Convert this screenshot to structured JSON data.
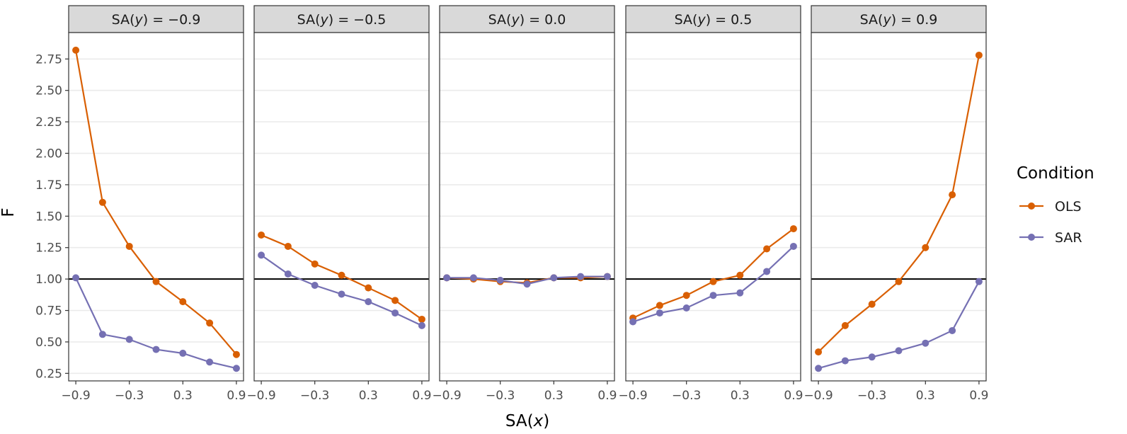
{
  "chart_data": {
    "type": "line",
    "facet_label_prefix": "SA(y) = ",
    "facets": [
      {
        "label": "SA(y) = −0.9",
        "value": "−0.9",
        "series": [
          {
            "name": "OLS",
            "values": [
              2.82,
              1.61,
              1.26,
              0.98,
              0.82,
              0.65,
              0.4
            ]
          },
          {
            "name": "SAR",
            "values": [
              1.01,
              0.56,
              0.52,
              0.44,
              0.41,
              0.34,
              0.29
            ]
          }
        ]
      },
      {
        "label": "SA(y) = −0.5",
        "value": "−0.5",
        "series": [
          {
            "name": "OLS",
            "values": [
              1.35,
              1.26,
              1.12,
              1.03,
              0.93,
              0.83,
              0.68
            ]
          },
          {
            "name": "SAR",
            "values": [
              1.19,
              1.04,
              0.95,
              0.88,
              0.82,
              0.73,
              0.63
            ]
          }
        ]
      },
      {
        "label": "SA(y) = 0.0",
        "value": "0.0",
        "series": [
          {
            "name": "OLS",
            "values": [
              1.01,
              1.0,
              0.98,
              0.97,
              1.01,
              1.01,
              1.02
            ]
          },
          {
            "name": "SAR",
            "values": [
              1.01,
              1.01,
              0.99,
              0.96,
              1.01,
              1.02,
              1.02
            ]
          }
        ]
      },
      {
        "label": "SA(y) = 0.5",
        "value": "0.5",
        "series": [
          {
            "name": "OLS",
            "values": [
              0.69,
              0.79,
              0.87,
              0.98,
              1.03,
              1.24,
              1.4
            ]
          },
          {
            "name": "SAR",
            "values": [
              0.66,
              0.73,
              0.77,
              0.87,
              0.89,
              1.06,
              1.26
            ]
          }
        ]
      },
      {
        "label": "SA(y) = 0.9",
        "value": "0.9",
        "series": [
          {
            "name": "OLS",
            "values": [
              0.42,
              0.63,
              0.8,
              0.98,
              1.25,
              1.67,
              2.78
            ]
          },
          {
            "name": "SAR",
            "values": [
              0.29,
              0.35,
              0.38,
              0.43,
              0.49,
              0.59,
              0.98
            ]
          }
        ]
      }
    ],
    "x": [
      -0.9,
      -0.6,
      -0.3,
      0.0,
      0.3,
      0.6,
      0.9
    ],
    "xticks": [
      -0.9,
      -0.3,
      0.3,
      0.9
    ],
    "xtick_labels": [
      "−0.9",
      "−0.3",
      "0.3",
      "0.9"
    ],
    "xlim": [
      -0.98,
      0.98
    ],
    "yticks": [
      0.25,
      0.5,
      0.75,
      1.0,
      1.25,
      1.5,
      1.75,
      2.0,
      2.25,
      2.5,
      2.75
    ],
    "ytick_labels": [
      "0.25",
      "0.50",
      "0.75",
      "1.00",
      "1.25",
      "1.50",
      "1.75",
      "2.00",
      "2.25",
      "2.50",
      "2.75"
    ],
    "ylim": [
      0.19,
      2.96
    ],
    "reference_line": 1.0,
    "xlabel": "SA(x)",
    "ylabel": "F",
    "legend": {
      "title": "Condition",
      "position": "right",
      "entries": [
        {
          "name": "OLS",
          "color": "#d95f02"
        },
        {
          "name": "SAR",
          "color": "#7570b3"
        }
      ]
    },
    "grid": true
  }
}
